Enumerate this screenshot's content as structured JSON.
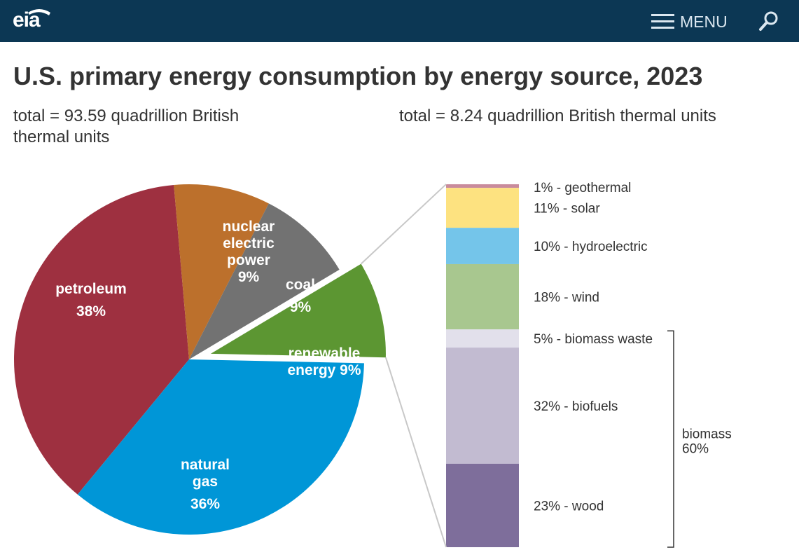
{
  "header": {
    "logo_text": "eia",
    "menu_label": "MENU",
    "menu_icon": "hamburger-icon",
    "search_icon": "search-icon",
    "background": "#0c3754"
  },
  "title": "U.S. primary energy consumption by energy source, 2023",
  "totals": {
    "left": "total = 93.59 quadrillion British thermal units",
    "right": "total = 8.24 quadrillion British thermal units"
  },
  "chart_data": [
    {
      "type": "pie",
      "total": "total = 93.59 quadrillion British thermal units",
      "slices": [
        {
          "label_lines": [
            "petroleum"
          ],
          "pct_text": "38%",
          "value": 38,
          "color": "#9e3040",
          "exploded": false
        },
        {
          "label_lines": [
            "nuclear",
            "electric",
            "power"
          ],
          "pct_text": "9%",
          "value": 9,
          "color": "#bc702c",
          "exploded": false
        },
        {
          "label_lines": [
            "coal"
          ],
          "pct_text": "9%",
          "value": 9,
          "color": "#727272",
          "exploded": false
        },
        {
          "label_lines": [
            "renewable",
            "energy 9%"
          ],
          "pct_text": "",
          "value": 9,
          "color": "#5c9632",
          "exploded": true
        },
        {
          "label_lines": [
            "natural",
            "gas"
          ],
          "pct_text": "36%",
          "value": 36,
          "color": "#0096d7",
          "exploded": false
        }
      ]
    },
    {
      "type": "bar",
      "stacked": true,
      "total": "total = 8.24 quadrillion British thermal units",
      "segments": [
        {
          "label": "1% - geothermal",
          "value": 1,
          "color": "#c98b9c"
        },
        {
          "label": "11% - solar",
          "value": 11,
          "color": "#fde280"
        },
        {
          "label": "10% - hydroelectric",
          "value": 10,
          "color": "#74c5ea"
        },
        {
          "label": "18% - wind",
          "value": 18,
          "color": "#a8c78f"
        },
        {
          "label": "5% - biomass waste",
          "value": 5,
          "color": "#e2e0eb"
        },
        {
          "label": "32% - biofuels",
          "value": 32,
          "color": "#c2bbd1"
        },
        {
          "label": "23% - wood",
          "value": 23,
          "color": "#7e6e9b"
        }
      ],
      "group": {
        "label_lines": [
          "biomass",
          "60%"
        ],
        "from_segment": 4,
        "to_segment": 6
      }
    }
  ]
}
